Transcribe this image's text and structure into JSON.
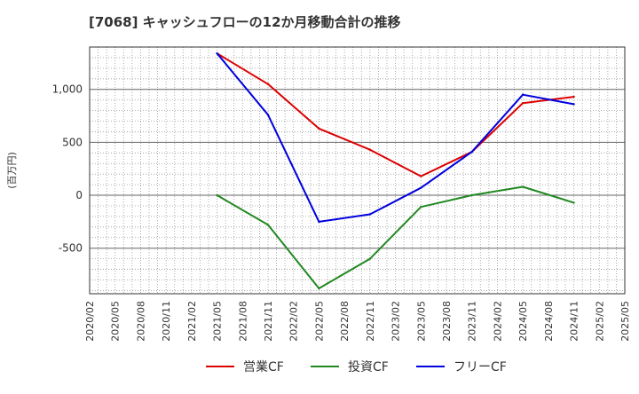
{
  "chart_data": {
    "type": "line",
    "title": "[7068]  キャッシュフローの12か月移動合計の推移",
    "ylabel": "(百万円)",
    "xlabel": "",
    "ylim": [
      -930,
      1400
    ],
    "yticks": [
      -500,
      0,
      500,
      1000
    ],
    "ytick_labels": [
      "-500",
      "0",
      "500",
      "1,000"
    ],
    "grid": true,
    "legend_position": "bottom",
    "x_ticks": [
      "2020/02",
      "2020/05",
      "2020/08",
      "2020/11",
      "2021/02",
      "2021/05",
      "2021/08",
      "2021/11",
      "2022/02",
      "2022/05",
      "2022/08",
      "2022/11",
      "2023/02",
      "2023/05",
      "2023/08",
      "2023/11",
      "2024/02",
      "2024/05",
      "2024/08",
      "2024/11",
      "2025/02",
      "2025/05"
    ],
    "series": [
      {
        "name": "営業CF",
        "color": "#dd0000",
        "x": [
          "2021/05",
          "2021/11",
          "2022/05",
          "2022/11",
          "2023/05",
          "2023/11",
          "2024/05",
          "2024/11"
        ],
        "values": [
          1340,
          1050,
          630,
          430,
          180,
          410,
          870,
          930
        ]
      },
      {
        "name": "投資CF",
        "color": "#228822",
        "x": [
          "2021/05",
          "2021/11",
          "2022/05",
          "2022/11",
          "2023/05",
          "2023/11",
          "2024/05",
          "2024/11"
        ],
        "values": [
          0,
          -280,
          -880,
          -600,
          -110,
          0,
          80,
          -70
        ]
      },
      {
        "name": "フリーCF",
        "color": "#0000dd",
        "x": [
          "2021/05",
          "2021/11",
          "2022/05",
          "2022/11",
          "2023/05",
          "2023/11",
          "2024/05",
          "2024/11"
        ],
        "values": [
          1340,
          760,
          -250,
          -180,
          70,
          410,
          950,
          860
        ]
      }
    ]
  }
}
